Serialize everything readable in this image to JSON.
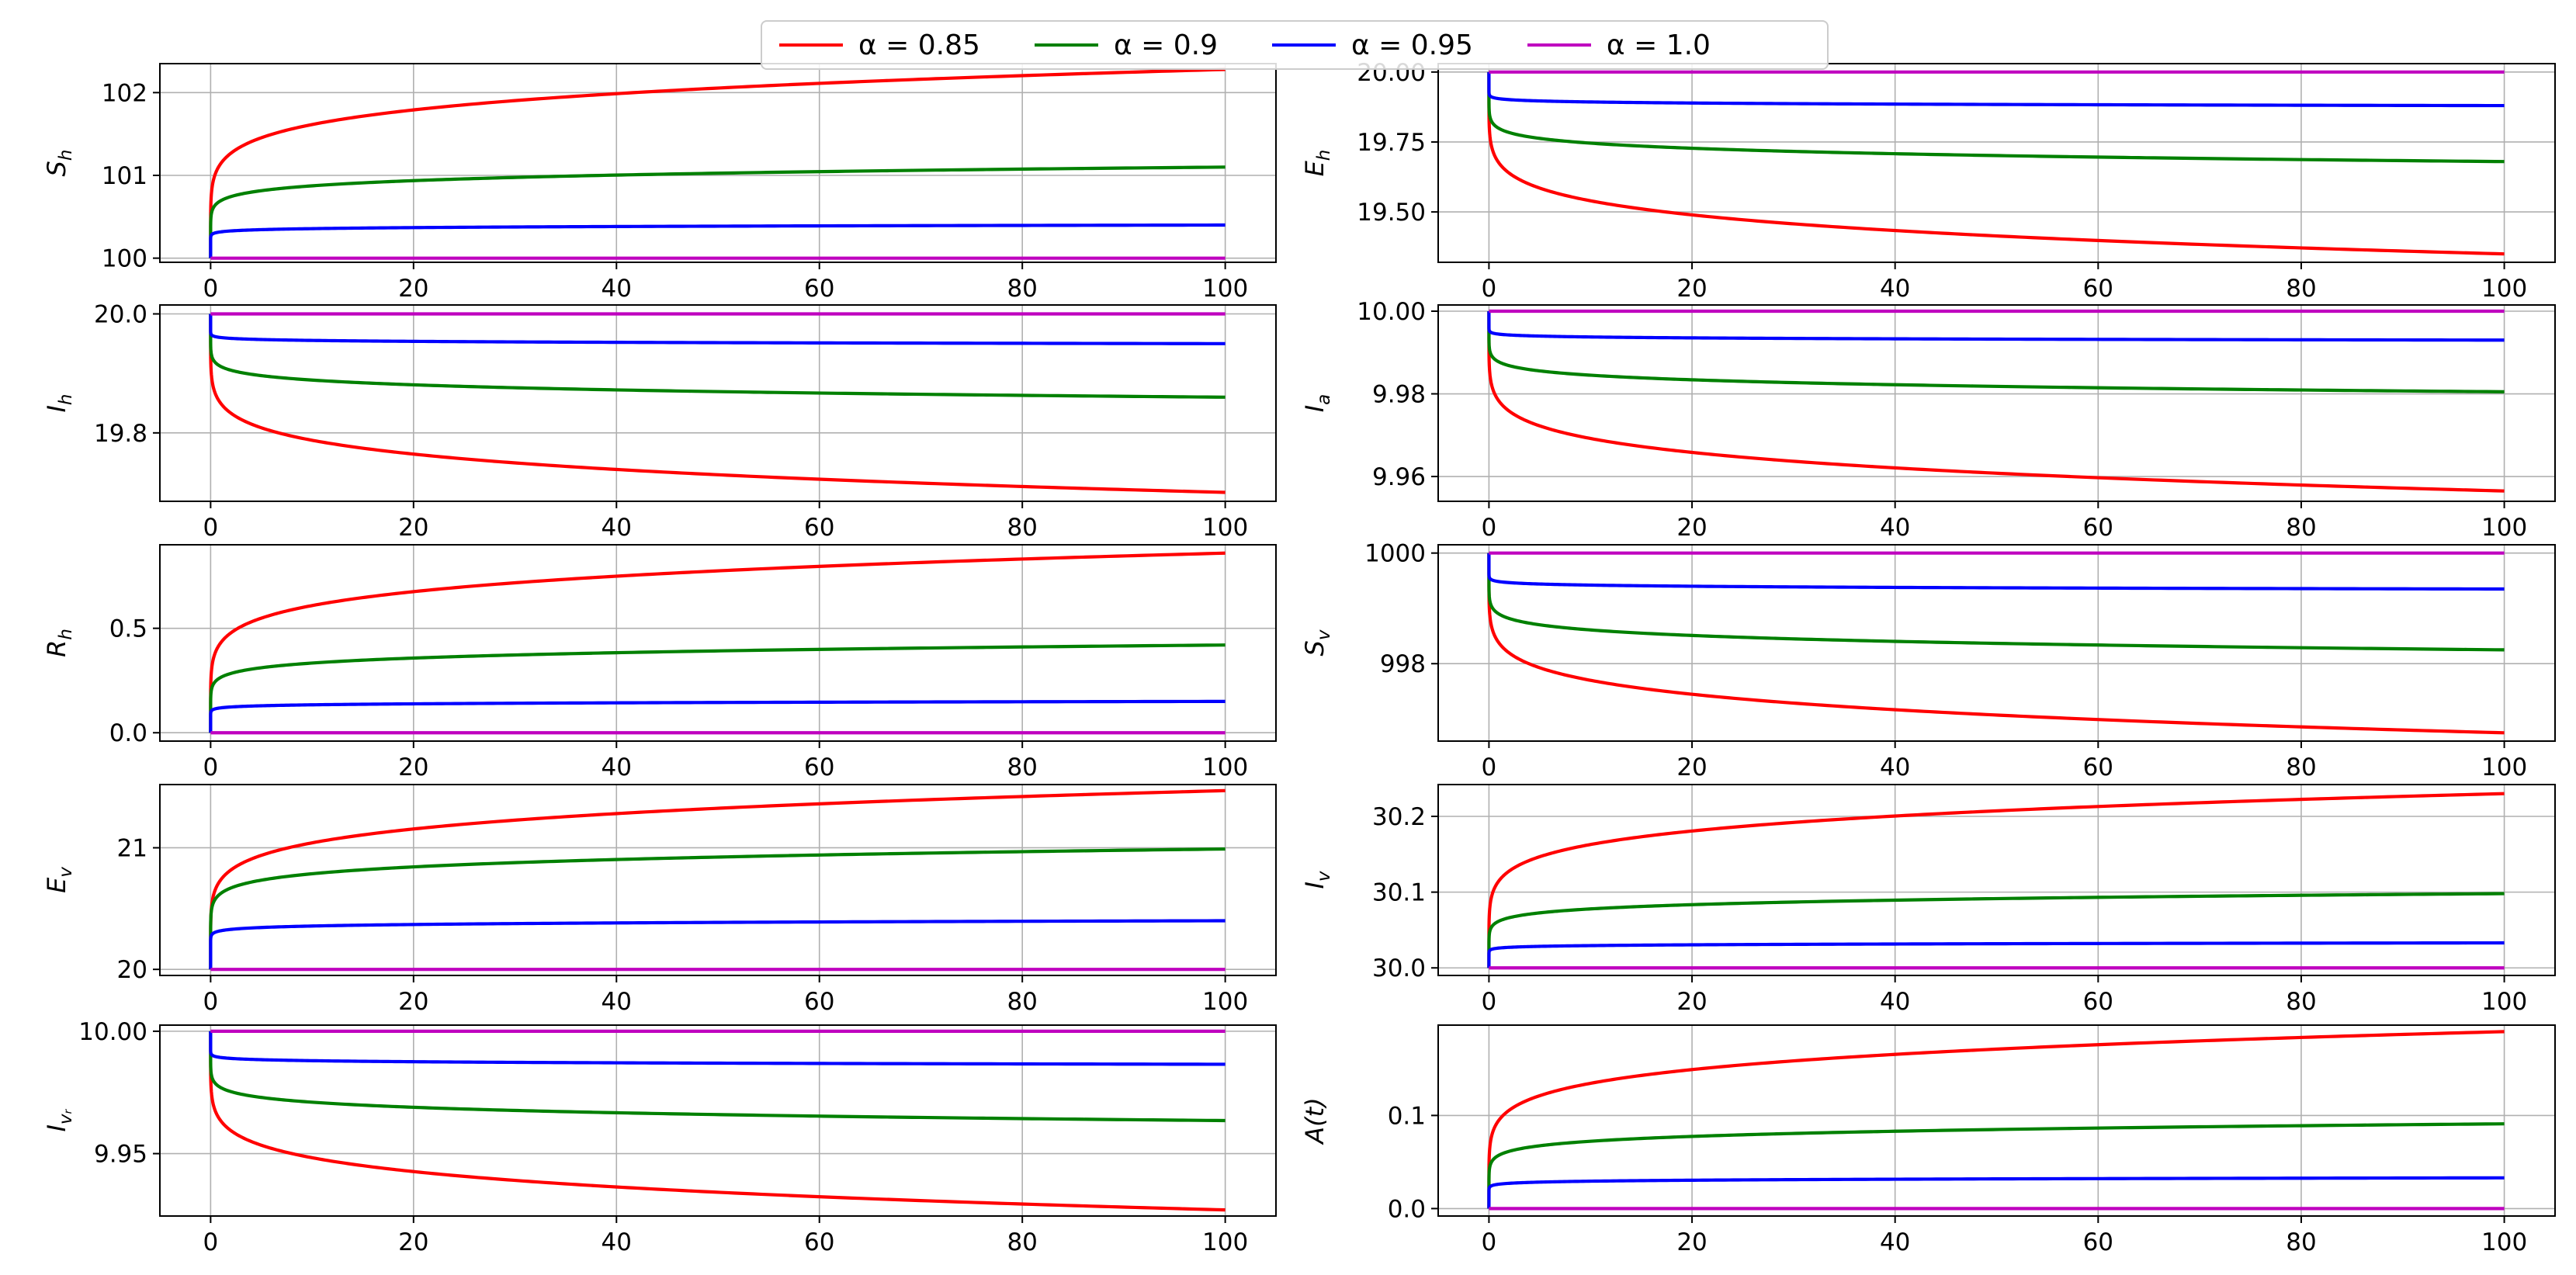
{
  "chart_data": [
    {
      "type": "line",
      "ylabel": "S",
      "ylabel_sub": "h",
      "xlim": [
        -5,
        105
      ],
      "ylim": [
        99.95,
        102.35
      ],
      "xticks": [
        0,
        20,
        40,
        60,
        80,
        100
      ],
      "yticks": [
        100,
        101,
        102
      ],
      "ytick_labels": [
        "100",
        "101",
        "102"
      ],
      "grid": true,
      "trend": "up",
      "series_end": [
        102.28,
        101.1,
        100.4,
        100.0
      ]
    },
    {
      "type": "line",
      "ylabel": "E",
      "ylabel_sub": "h",
      "xlim": [
        -5,
        105
      ],
      "ylim": [
        19.32,
        20.03
      ],
      "xticks": [
        0,
        20,
        40,
        60,
        80,
        100
      ],
      "yticks": [
        19.5,
        19.75,
        20.0
      ],
      "ytick_labels": [
        "19.50",
        "19.75",
        "20.00"
      ],
      "grid": true,
      "trend": "down",
      "series_end": [
        19.35,
        19.68,
        19.88,
        20.0
      ]
    },
    {
      "type": "line",
      "ylabel": "I",
      "ylabel_sub": "h",
      "xlim": [
        -5,
        105
      ],
      "ylim": [
        19.685,
        20.015
      ],
      "xticks": [
        0,
        20,
        40,
        60,
        80,
        100
      ],
      "yticks": [
        19.8,
        20.0
      ],
      "ytick_labels": [
        "19.8",
        "20.0"
      ],
      "grid": true,
      "trend": "down",
      "series_end": [
        19.7,
        19.86,
        19.95,
        20.0
      ]
    },
    {
      "type": "line",
      "ylabel": "I",
      "ylabel_sub": "a",
      "xlim": [
        -5,
        105
      ],
      "ylim": [
        9.954,
        10.0015
      ],
      "xticks": [
        0,
        20,
        40,
        60,
        80,
        100
      ],
      "yticks": [
        9.96,
        9.98,
        10.0
      ],
      "ytick_labels": [
        "9.96",
        "9.98",
        "10.00"
      ],
      "grid": true,
      "trend": "down",
      "series_end": [
        9.9565,
        9.9805,
        9.993,
        10.0
      ]
    },
    {
      "type": "line",
      "ylabel": "R",
      "ylabel_sub": "h",
      "xlim": [
        -5,
        105
      ],
      "ylim": [
        -0.04,
        0.9
      ],
      "xticks": [
        0,
        20,
        40,
        60,
        80,
        100
      ],
      "yticks": [
        0.0,
        0.5
      ],
      "ytick_labels": [
        "0.0",
        "0.5"
      ],
      "grid": true,
      "trend": "up",
      "series_end": [
        0.86,
        0.42,
        0.15,
        0.0
      ]
    },
    {
      "type": "line",
      "ylabel": "S",
      "ylabel_sub": "v",
      "xlim": [
        -5,
        105
      ],
      "ylim": [
        996.6,
        1000.15
      ],
      "xticks": [
        0,
        20,
        40,
        60,
        80,
        100
      ],
      "yticks": [
        998,
        1000
      ],
      "ytick_labels": [
        "998",
        "1000"
      ],
      "grid": true,
      "trend": "down",
      "series_end": [
        996.75,
        998.25,
        999.35,
        1000.0
      ]
    },
    {
      "type": "line",
      "ylabel": "E",
      "ylabel_sub": "v",
      "xlim": [
        -5,
        105
      ],
      "ylim": [
        19.95,
        21.52
      ],
      "xticks": [
        0,
        20,
        40,
        60,
        80,
        100
      ],
      "yticks": [
        20,
        21
      ],
      "ytick_labels": [
        "20",
        "21"
      ],
      "grid": true,
      "trend": "up",
      "series_end": [
        21.47,
        20.99,
        20.4,
        20.0
      ]
    },
    {
      "type": "line",
      "ylabel": "I",
      "ylabel_sub": "v",
      "xlim": [
        -5,
        105
      ],
      "ylim": [
        29.99,
        30.242
      ],
      "xticks": [
        0,
        20,
        40,
        60,
        80,
        100
      ],
      "yticks": [
        30.0,
        30.1,
        30.2
      ],
      "ytick_labels": [
        "30.0",
        "30.1",
        "30.2"
      ],
      "grid": true,
      "trend": "up",
      "series_end": [
        30.23,
        30.098,
        30.033,
        30.0
      ]
    },
    {
      "type": "line",
      "ylabel": "I",
      "ylabel_sub": "vᵣ",
      "xlim": [
        -5,
        105
      ],
      "ylim": [
        9.9245,
        10.0025
      ],
      "xticks": [
        0,
        20,
        40,
        60,
        80,
        100
      ],
      "yticks": [
        9.95,
        10.0
      ],
      "ytick_labels": [
        "9.95",
        "10.00"
      ],
      "grid": true,
      "trend": "down",
      "series_end": [
        9.927,
        9.9635,
        9.9865,
        10.0
      ]
    },
    {
      "type": "line",
      "ylabel": "A(t)",
      "ylabel_sub": "",
      "xlim": [
        -5,
        105
      ],
      "ylim": [
        -0.008,
        0.197
      ],
      "xticks": [
        0,
        20,
        40,
        60,
        80,
        100
      ],
      "yticks": [
        0.0,
        0.1
      ],
      "ytick_labels": [
        "0.0",
        "0.1"
      ],
      "grid": true,
      "trend": "up",
      "series_end": [
        0.19,
        0.091,
        0.033,
        0.0
      ]
    }
  ],
  "series_names": [
    "α = 0.85",
    "α = 0.9",
    "α = 0.95",
    "α = 1.0"
  ],
  "series_alpha": [
    0.85,
    0.9,
    0.95,
    1.0
  ],
  "series_colors": [
    "#ff0000",
    "#008000",
    "#0000ff",
    "#bf00bf"
  ],
  "grid_color": "#b0b0b0",
  "legend_position": "top-center"
}
